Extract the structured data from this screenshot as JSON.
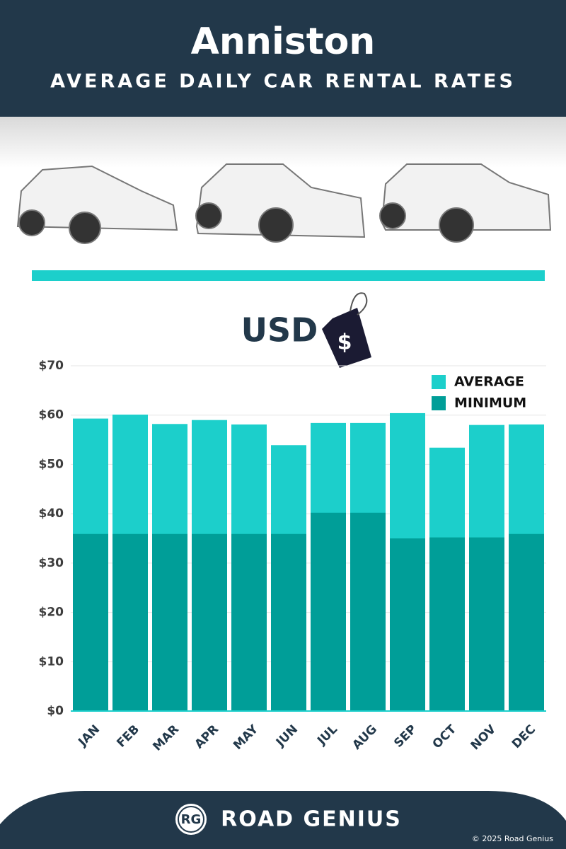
{
  "chart_data": {
    "type": "bar",
    "title": "Anniston",
    "subtitle": "AVERAGE DAILY CAR RENTAL RATES",
    "annotation": "USD",
    "annotation_icon": "$",
    "brand_mark": "RG",
    "brand": "ROAD GENIUS",
    "copyright": "© 2025 Road Genius",
    "categories": [
      "JAN",
      "FEB",
      "MAR",
      "APR",
      "MAY",
      "JUN",
      "JUL",
      "AUG",
      "SEP",
      "OCT",
      "NOV",
      "DEC"
    ],
    "series": [
      {
        "name": "AVERAGE",
        "color": "#1ccfcb",
        "values": [
          59.3,
          60.1,
          58.2,
          59.0,
          58.1,
          53.9,
          58.4,
          58.4,
          60.4,
          53.4,
          58.0,
          58.1
        ]
      },
      {
        "name": "MINIMUM",
        "color": "#009e98",
        "values": [
          35.9,
          35.9,
          35.9,
          35.9,
          35.9,
          35.9,
          40.2,
          40.2,
          35.0,
          35.2,
          35.2,
          35.9
        ]
      }
    ],
    "ylim": [
      0,
      70
    ],
    "yticks": [
      {
        "value": 0,
        "label": "$0"
      },
      {
        "value": 10,
        "label": "$10"
      },
      {
        "value": 20,
        "label": "$20"
      },
      {
        "value": 30,
        "label": "$30"
      },
      {
        "value": 40,
        "label": "$40"
      },
      {
        "value": 50,
        "label": "$50"
      },
      {
        "value": 60,
        "label": "$60"
      },
      {
        "value": 70,
        "label": "$70"
      }
    ],
    "grid": true,
    "legend": "upper right"
  }
}
